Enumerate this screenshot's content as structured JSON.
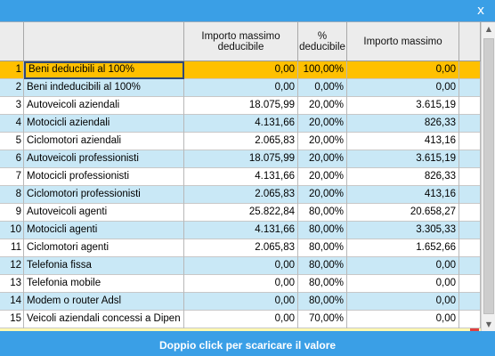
{
  "window": {
    "close_glyph": "x"
  },
  "columns": [
    "",
    "",
    "Importo massimo deducibile",
    "% deducibile",
    "Importo massimo",
    ""
  ],
  "rows": [
    {
      "n": "1",
      "label": "Beni deducibili al 100%",
      "max_ded": "0,00",
      "pct": "100,00%",
      "max": "0,00",
      "style": "selected"
    },
    {
      "n": "2",
      "label": "Beni indeducibili al 100%",
      "max_ded": "0,00",
      "pct": "0,00%",
      "max": "0,00",
      "style": "alt"
    },
    {
      "n": "3",
      "label": "Autoveicoli aziendali",
      "max_ded": "18.075,99",
      "pct": "20,00%",
      "max": "3.615,19",
      "style": "white"
    },
    {
      "n": "4",
      "label": "Motocicli aziendali",
      "max_ded": "4.131,66",
      "pct": "20,00%",
      "max": "826,33",
      "style": "alt"
    },
    {
      "n": "5",
      "label": "Ciclomotori aziendali",
      "max_ded": "2.065,83",
      "pct": "20,00%",
      "max": "413,16",
      "style": "white"
    },
    {
      "n": "6",
      "label": "Autoveicoli professionisti",
      "max_ded": "18.075,99",
      "pct": "20,00%",
      "max": "3.615,19",
      "style": "alt"
    },
    {
      "n": "7",
      "label": "Motocicli professionisti",
      "max_ded": "4.131,66",
      "pct": "20,00%",
      "max": "826,33",
      "style": "white"
    },
    {
      "n": "8",
      "label": "Ciclomotori professionisti",
      "max_ded": "2.065,83",
      "pct": "20,00%",
      "max": "413,16",
      "style": "alt"
    },
    {
      "n": "9",
      "label": "Autoveicoli agenti",
      "max_ded": "25.822,84",
      "pct": "80,00%",
      "max": "20.658,27",
      "style": "white"
    },
    {
      "n": "10",
      "label": "Motocicli agenti",
      "max_ded": "4.131,66",
      "pct": "80,00%",
      "max": "3.305,33",
      "style": "alt"
    },
    {
      "n": "11",
      "label": "Ciclomotori agenti",
      "max_ded": "2.065,83",
      "pct": "80,00%",
      "max": "1.652,66",
      "style": "white"
    },
    {
      "n": "12",
      "label": "Telefonia fissa",
      "max_ded": "0,00",
      "pct": "80,00%",
      "max": "0,00",
      "style": "alt"
    },
    {
      "n": "13",
      "label": "Telefonia mobile",
      "max_ded": "0,00",
      "pct": "80,00%",
      "max": "0,00",
      "style": "white"
    },
    {
      "n": "14",
      "label": "Modem o router Adsl",
      "max_ded": "0,00",
      "pct": "80,00%",
      "max": "0,00",
      "style": "alt"
    },
    {
      "n": "15",
      "label": "Veicoli aziendali concessi a Dipen",
      "max_ded": "0,00",
      "pct": "70,00%",
      "max": "0,00",
      "style": "white"
    }
  ],
  "footer": {
    "text": "Doppio click per scaricare il valore"
  },
  "colors": {
    "titlebar": "#3a9fe6",
    "row_alt": "#c9e8f6",
    "row_selected": "#ffc000",
    "header": "#ececec"
  }
}
